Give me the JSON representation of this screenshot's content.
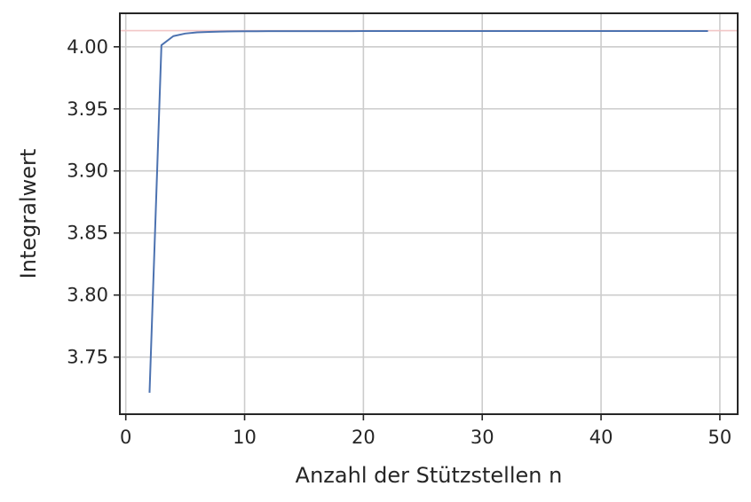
{
  "chart_data": {
    "type": "line",
    "title": "",
    "xlabel": "Anzahl der Stützstellen n",
    "ylabel": "Integralwert",
    "xlim": [
      -0.5,
      51.5
    ],
    "ylim": [
      3.704,
      4.027
    ],
    "xticks": [
      0,
      10,
      20,
      30,
      40,
      50
    ],
    "xtick_labels": [
      "0",
      "10",
      "20",
      "30",
      "40",
      "50"
    ],
    "yticks": [
      3.75,
      3.8,
      3.85,
      3.9,
      3.95,
      4.0
    ],
    "ytick_labels": [
      "3.75",
      "3.80",
      "3.85",
      "3.90",
      "3.95",
      "4.00"
    ],
    "grid": true,
    "legend": "none",
    "series": [
      {
        "color": "#4c72b0",
        "x": [
          2,
          3,
          4,
          5,
          6,
          7,
          8,
          9,
          10,
          11,
          12,
          13,
          14,
          15,
          16,
          17,
          18,
          19,
          20,
          21,
          22,
          23,
          24,
          25,
          26,
          27,
          28,
          29,
          30,
          31,
          32,
          33,
          34,
          35,
          36,
          37,
          38,
          39,
          40,
          41,
          42,
          43,
          44,
          45,
          46,
          47,
          48,
          49
        ],
        "y": [
          3.7213,
          4.0013,
          4.0086,
          4.0107,
          4.0116,
          4.012,
          4.0123,
          4.0124,
          4.0125,
          4.0125,
          4.0126,
          4.0126,
          4.0126,
          4.0126,
          4.0126,
          4.0126,
          4.0126,
          4.0126,
          4.0127,
          4.0127,
          4.0127,
          4.0127,
          4.0127,
          4.0127,
          4.0127,
          4.0127,
          4.0127,
          4.0127,
          4.0127,
          4.0127,
          4.0127,
          4.0127,
          4.0127,
          4.0127,
          4.0127,
          4.0127,
          4.0127,
          4.0127,
          4.0127,
          4.0127,
          4.0127,
          4.0127,
          4.0127,
          4.0127,
          4.0127,
          4.0127,
          4.0127,
          4.0127
        ]
      }
    ],
    "reference_line": {
      "y": 4.013,
      "color": "#f2c6c6"
    }
  }
}
